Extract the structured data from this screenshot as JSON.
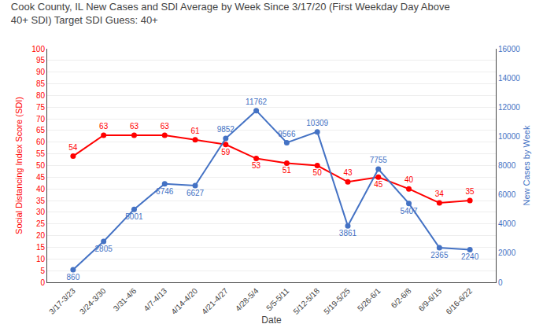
{
  "chart_data": {
    "type": "line",
    "title": "Cook County, IL New Cases and SDI Average by Week Since 3/17/20 (First Weekday Day Above\n40+ SDI) Target SDI Guess: 40+",
    "xlabel": "Date",
    "ylabel": "Social Distancing Index Score (SDI)",
    "y2label": "New Cases by Week",
    "categories": [
      "3/17-3/23",
      "3/24-3/30",
      "3/31-4/6",
      "4/7-4/13",
      "4/14-4/20",
      "4/21-4/27",
      "4/28-5/4",
      "5/5-5/11",
      "5/12-5/18",
      "5/19-5/25",
      "5/26-6/1",
      "6/2-6/8",
      "6/9-6/15",
      "6/16-6/22"
    ],
    "series": [
      {
        "color": "#FF0000",
        "marker": "circle",
        "values": [
          54,
          63,
          63,
          63,
          61,
          59,
          53,
          51,
          50,
          43,
          45,
          40,
          34,
          35
        ]
      },
      {
        "color": "#4472C4",
        "marker": "circle",
        "axis": "y2",
        "values": [
          860,
          2805,
          5001,
          6746,
          6627,
          9852,
          11762,
          9566,
          10309,
          3861,
          7755,
          5407,
          2365,
          2240
        ]
      }
    ],
    "ylim": [
      0,
      100
    ],
    "yticks": [
      0,
      5,
      10,
      15,
      20,
      25,
      30,
      35,
      40,
      45,
      50,
      55,
      60,
      65,
      70,
      75,
      80,
      85,
      90,
      95,
      100
    ],
    "y2lim": [
      0,
      16000
    ],
    "y2ticks": [
      0,
      2000,
      4000,
      6000,
      8000,
      10000,
      12000,
      14000,
      16000
    ],
    "grid": true,
    "data_labels": true
  }
}
